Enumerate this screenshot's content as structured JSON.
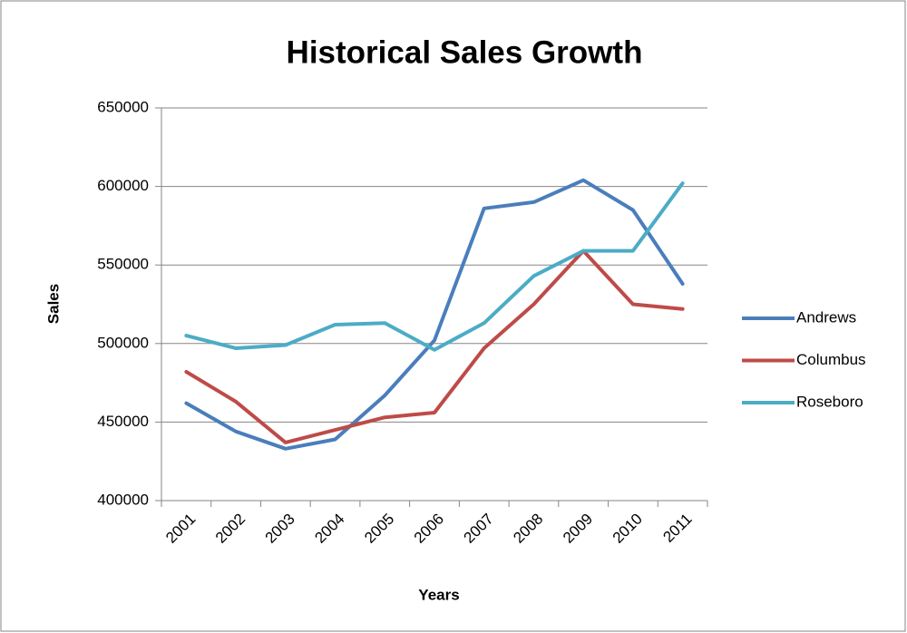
{
  "chart_data": {
    "type": "line",
    "title": "Historical Sales Growth",
    "x_label": "Years",
    "y_label": "Sales",
    "categories": [
      "2001",
      "2002",
      "2003",
      "2004",
      "2005",
      "2006",
      "2007",
      "2008",
      "2009",
      "2010",
      "2011"
    ],
    "series": [
      {
        "name": "Andrews",
        "color": "#4a7ebb",
        "values": [
          462000,
          444000,
          433000,
          439000,
          467000,
          502000,
          586000,
          590000,
          604000,
          585000,
          538000
        ]
      },
      {
        "name": "Columbus",
        "color": "#be4b48",
        "values": [
          482000,
          463000,
          437000,
          445000,
          453000,
          456000,
          497000,
          525000,
          559000,
          525000,
          522000
        ]
      },
      {
        "name": "Roseboro",
        "color": "#4bacc6",
        "values": [
          505000,
          497000,
          499000,
          512000,
          513000,
          496000,
          513000,
          543000,
          559000,
          559000,
          602000
        ]
      }
    ],
    "ylim": [
      400000,
      650000
    ],
    "yticks": [
      400000,
      450000,
      500000,
      550000,
      600000,
      650000
    ],
    "grid": true,
    "legend": "right"
  }
}
